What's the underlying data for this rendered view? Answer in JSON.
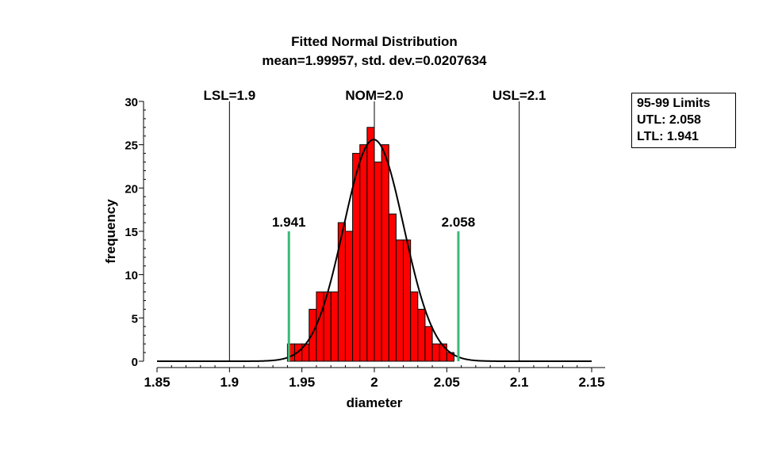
{
  "chart_data": {
    "type": "bar",
    "title": "Fitted Normal Distribution",
    "subtitle": "mean=1.99957, std. dev.=0.0207634",
    "xlabel": "diameter",
    "ylabel": "frequency",
    "xlim": [
      1.85,
      2.15
    ],
    "ylim": [
      0,
      30
    ],
    "x_ticks": [
      "1.85",
      "1.9",
      "1.95",
      "2",
      "2.05",
      "2.1",
      "2.15"
    ],
    "y_ticks": [
      "0",
      "5",
      "10",
      "15",
      "20",
      "25",
      "30"
    ],
    "bin_width": 0.005,
    "histogram": [
      {
        "x0": 1.94,
        "count": 2
      },
      {
        "x0": 1.945,
        "count": 2
      },
      {
        "x0": 1.95,
        "count": 2
      },
      {
        "x0": 1.955,
        "count": 6
      },
      {
        "x0": 1.96,
        "count": 8
      },
      {
        "x0": 1.965,
        "count": 8
      },
      {
        "x0": 1.97,
        "count": 8
      },
      {
        "x0": 1.975,
        "count": 16
      },
      {
        "x0": 1.98,
        "count": 15
      },
      {
        "x0": 1.985,
        "count": 24
      },
      {
        "x0": 1.99,
        "count": 25
      },
      {
        "x0": 1.995,
        "count": 27
      },
      {
        "x0": 2.0,
        "count": 23
      },
      {
        "x0": 2.005,
        "count": 25
      },
      {
        "x0": 2.01,
        "count": 17
      },
      {
        "x0": 2.015,
        "count": 14
      },
      {
        "x0": 2.02,
        "count": 14
      },
      {
        "x0": 2.025,
        "count": 8
      },
      {
        "x0": 2.03,
        "count": 6
      },
      {
        "x0": 2.035,
        "count": 4
      },
      {
        "x0": 2.04,
        "count": 2
      },
      {
        "x0": 2.045,
        "count": 2
      },
      {
        "x0": 2.05,
        "count": 1
      }
    ],
    "fitted_curve": {
      "distribution": "normal",
      "mean": 1.99957,
      "std_dev": 0.0207634,
      "peak": 25.6
    },
    "spec_lines": [
      {
        "label": "LSL=1.9",
        "x": 1.9
      },
      {
        "label": "NOM=2.0",
        "x": 2.0
      },
      {
        "label": "USL=2.1",
        "x": 2.1
      }
    ],
    "limit_lines": [
      {
        "label": "1.941",
        "x": 1.941,
        "height": 15
      },
      {
        "label": "2.058",
        "x": 2.058,
        "height": 15
      }
    ],
    "legend": {
      "title": "95-99 Limits",
      "entries": [
        "UTL: 2.058",
        "LTL: 1.941"
      ],
      "placement": "top-right"
    },
    "colors": {
      "bar": "#ff0000",
      "bar_edge": "#000000",
      "curve": "#000000",
      "limit": "#3cb878",
      "spec": "#000000"
    }
  }
}
